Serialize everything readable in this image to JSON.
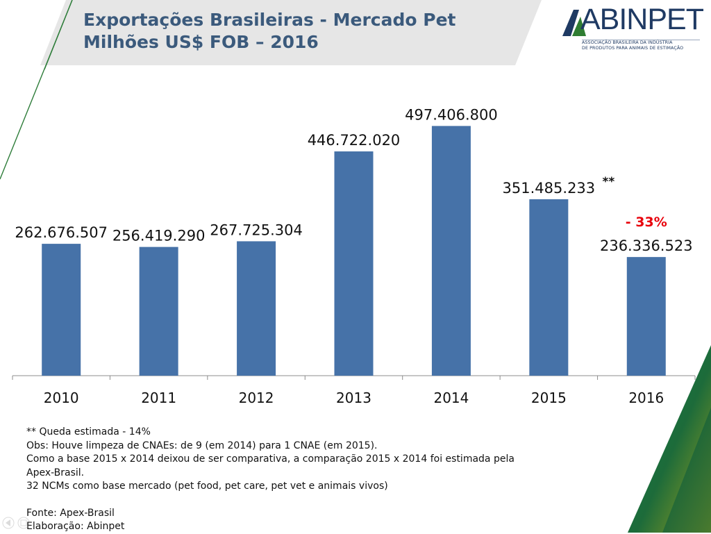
{
  "header": {
    "title_line1": "Exportações Brasileiras - Mercado Pet",
    "title_line2": "Milhões US$ FOB – 2016"
  },
  "logo": {
    "name": "ABINPET",
    "subtitle_line1": "ASSOCIAÇÃO BRASILEIRA DA INDÚSTRIA",
    "subtitle_line2": "DE PRODUTOS PARA ANIMAIS DE ESTIMAÇÃO"
  },
  "colors": {
    "bar": "#4672a8",
    "title": "#3b5a7c",
    "highlight": "#e8000b",
    "green": "#2e7d3a"
  },
  "chart_data": {
    "type": "bar",
    "title": "Exportações Brasileiras - Mercado Pet Milhões US$ FOB – 2016",
    "xlabel": "",
    "ylabel": "",
    "categories": [
      "2010",
      "2011",
      "2012",
      "2013",
      "2014",
      "2015",
      "2016"
    ],
    "values": [
      262676507,
      256419290,
      267725304,
      446722020,
      497406800,
      351485233,
      236336523
    ],
    "labels": [
      "262.676.507",
      "256.419.290",
      "267.725.304",
      "446.722.020",
      "497.406.800",
      "351.485.233",
      "236.336.523"
    ],
    "ylim": [
      0,
      610000000
    ],
    "grid": false,
    "annotations": [
      {
        "category": "2015",
        "text": "**"
      },
      {
        "category": "2016",
        "text": "- 33%"
      }
    ]
  },
  "notes": {
    "lines": [
      "** Queda estimada - 14%",
      "Obs: Houve limpeza de CNAEs: de 9 (em 2014) para 1 CNAE (em 2015).",
      "Como a base 2015 x 2014 deixou de ser comparativa, a comparação 2015 x 2014 foi estimada pela",
      "Apex-Brasil.",
      "32 NCMs como base mercado (pet food, pet care, pet vet e animais vivos)"
    ],
    "source": "Fonte: Apex-Brasil",
    "elaboration": "Elaboração: Abinpet"
  }
}
